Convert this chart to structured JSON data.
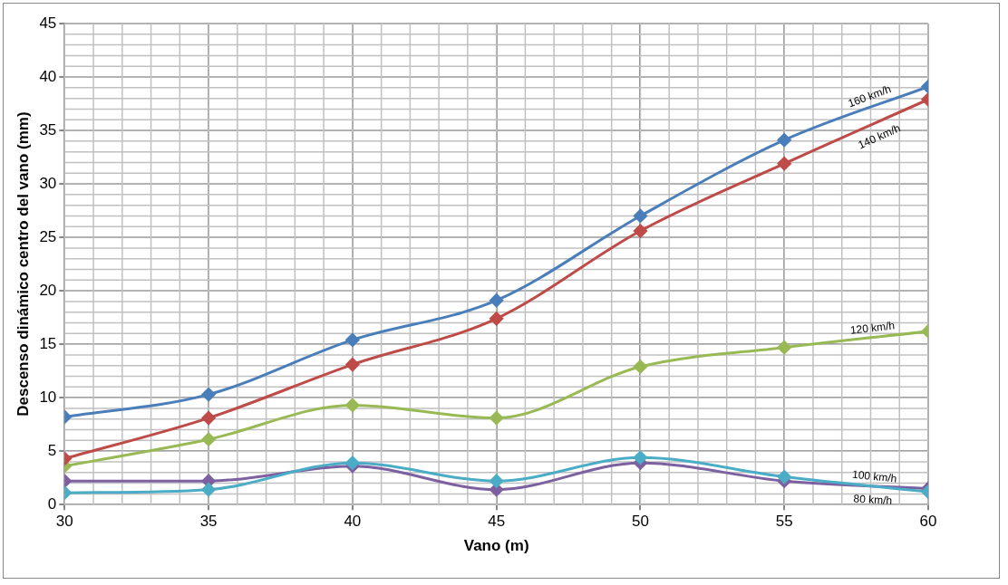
{
  "chart_data": {
    "type": "line",
    "xlabel": "Vano (m)",
    "ylabel": "Descenso dinámico centro del vano (mm)",
    "x": [
      30,
      35,
      40,
      45,
      50,
      55,
      60
    ],
    "xlim": [
      30,
      60
    ],
    "xticks": [
      30,
      35,
      40,
      45,
      50,
      55,
      60
    ],
    "ylim": [
      0,
      45
    ],
    "yticks": [
      0,
      5,
      10,
      15,
      20,
      25,
      30,
      35,
      40,
      45
    ],
    "grid": true,
    "legend": false,
    "marker": "diamond",
    "line_style": "solid",
    "series": [
      {
        "name": "160 km/h",
        "color": "#4a7ebb",
        "values": [
          8.2,
          10.3,
          15.4,
          19.1,
          27.0,
          34.1,
          39.1
        ]
      },
      {
        "name": "140 km/h",
        "color": "#be4b48",
        "values": [
          4.3,
          8.1,
          13.1,
          17.4,
          25.6,
          31.9,
          37.9
        ]
      },
      {
        "name": "120 km/h",
        "color": "#98b954",
        "values": [
          3.6,
          6.1,
          9.3,
          8.1,
          12.9,
          14.7,
          16.2
        ]
      },
      {
        "name": "100 km/h",
        "color": "#4bacc6",
        "values": [
          1.1,
          1.4,
          3.9,
          2.2,
          4.4,
          2.6,
          1.2
        ]
      },
      {
        "name": "80 km/h",
        "color": "#7d60a0",
        "values": [
          2.2,
          2.2,
          3.6,
          1.4,
          3.9,
          2.2,
          1.5
        ]
      }
    ]
  }
}
